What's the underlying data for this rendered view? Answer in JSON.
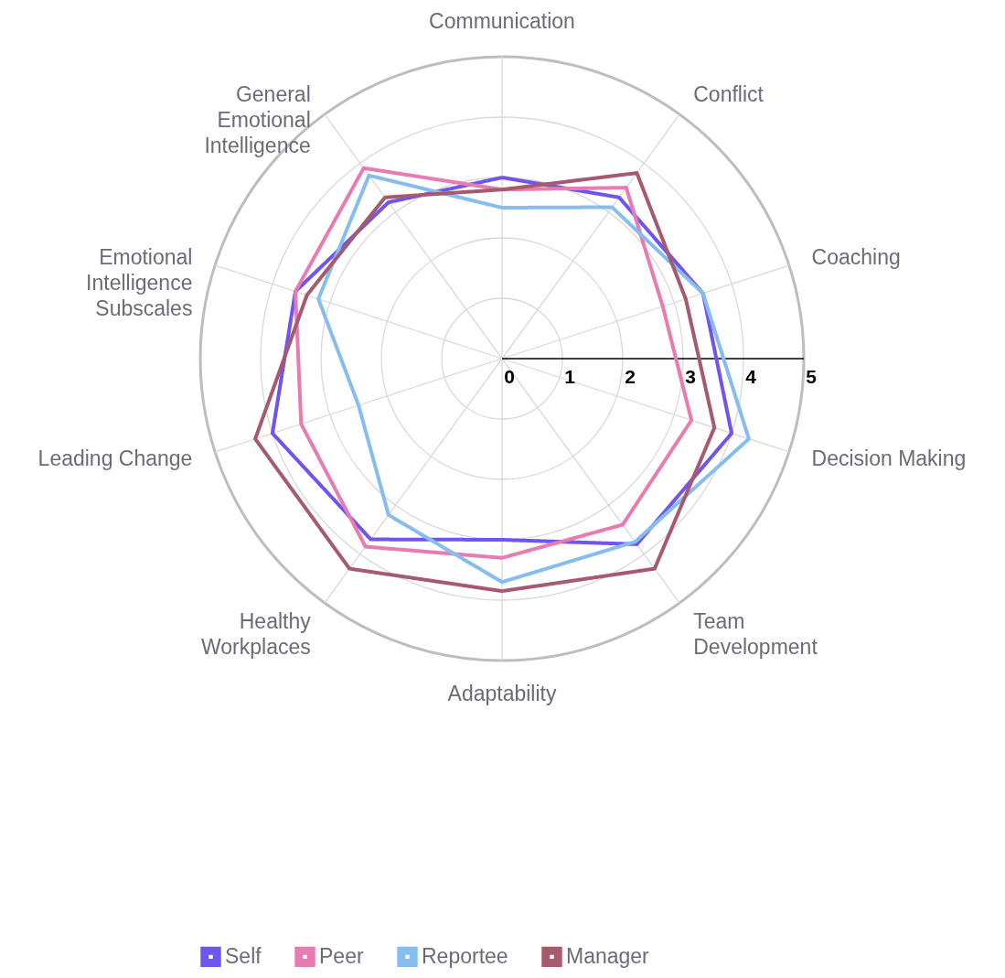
{
  "chart_data": {
    "type": "radar",
    "categories": [
      "Communication",
      "Conflict",
      "Coaching",
      "Decision Making",
      "Team\nDevelopment",
      "Adaptability",
      "Healthy\nWorkplaces",
      "Leading Change",
      "Emotional\nIntelligence\nSubscales",
      "General\nEmotional\nIntelligence"
    ],
    "series": [
      {
        "name": "Self",
        "color": "#6f55ef",
        "values": [
          3.0,
          3.3,
          3.5,
          4.0,
          3.8,
          3.0,
          3.7,
          4.0,
          3.6,
          3.2
        ]
      },
      {
        "name": "Peer",
        "color": "#e87bb2",
        "values": [
          2.8,
          3.5,
          2.8,
          3.3,
          3.4,
          3.3,
          3.85,
          3.5,
          3.6,
          3.9
        ]
      },
      {
        "name": "Reportee",
        "color": "#86bdf0",
        "values": [
          2.5,
          3.1,
          3.5,
          4.3,
          3.75,
          3.7,
          3.2,
          2.5,
          3.2,
          3.75
        ]
      },
      {
        "name": "Manager",
        "color": "#a65a6e",
        "values": [
          2.8,
          3.8,
          3.2,
          3.7,
          4.3,
          3.85,
          4.3,
          4.3,
          3.4,
          3.3
        ]
      }
    ],
    "ylim": [
      0,
      5
    ],
    "yticks": [
      0,
      1,
      2,
      3,
      4,
      5
    ],
    "grid": true,
    "legend": "bottom",
    "line_style": "solid",
    "marker": "none"
  }
}
